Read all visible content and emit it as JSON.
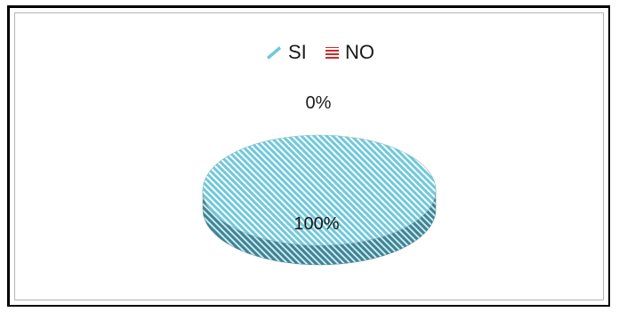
{
  "chart_data": {
    "type": "pie",
    "style": "3d",
    "title": "",
    "legend_position": "top",
    "categories": [
      "SI",
      "NO"
    ],
    "values": [
      100,
      0
    ],
    "data_labels": [
      "100%",
      "0%"
    ],
    "colors": {
      "SI": "#6ec9dc",
      "NO": "#cc2a2a"
    }
  }
}
